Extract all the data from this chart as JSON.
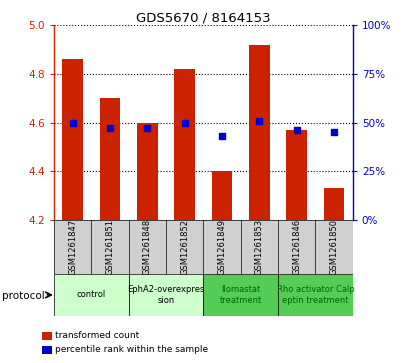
{
  "title": "GDS5670 / 8164153",
  "samples": [
    "GSM1261847",
    "GSM1261851",
    "GSM1261848",
    "GSM1261852",
    "GSM1261849",
    "GSM1261853",
    "GSM1261846",
    "GSM1261850"
  ],
  "transformed_counts": [
    4.86,
    4.7,
    4.6,
    4.82,
    4.4,
    4.92,
    4.57,
    4.33
  ],
  "percentile_ranks": [
    50,
    47,
    47,
    50,
    43,
    51,
    46,
    45
  ],
  "ylim": [
    4.2,
    5.0
  ],
  "yticks": [
    4.2,
    4.4,
    4.6,
    4.8,
    5.0
  ],
  "right_yticks": [
    0,
    25,
    50,
    75,
    100
  ],
  "right_ylim": [
    0,
    100
  ],
  "bar_color": "#cc2200",
  "dot_color": "#0000cc",
  "grid_color": "#000000",
  "protocols": [
    {
      "label": "control",
      "start": 0,
      "end": 2,
      "color": "#ccffcc",
      "text_color": "#000000"
    },
    {
      "label": "EphA2-overexpres\nsion",
      "start": 2,
      "end": 4,
      "color": "#ccffcc",
      "text_color": "#000000"
    },
    {
      "label": "Ilomastat\ntreatment",
      "start": 4,
      "end": 6,
      "color": "#55cc55",
      "text_color": "#006600"
    },
    {
      "label": "Rho activator Calp\neptin treatment",
      "start": 6,
      "end": 8,
      "color": "#55cc55",
      "text_color": "#006600"
    }
  ],
  "bar_width": 0.55,
  "ybase": 4.2,
  "cell_color": "#d0d0d0",
  "legend_items": [
    {
      "color": "#cc2200",
      "label": "transformed count"
    },
    {
      "color": "#0000cc",
      "label": "percentile rank within the sample"
    }
  ]
}
